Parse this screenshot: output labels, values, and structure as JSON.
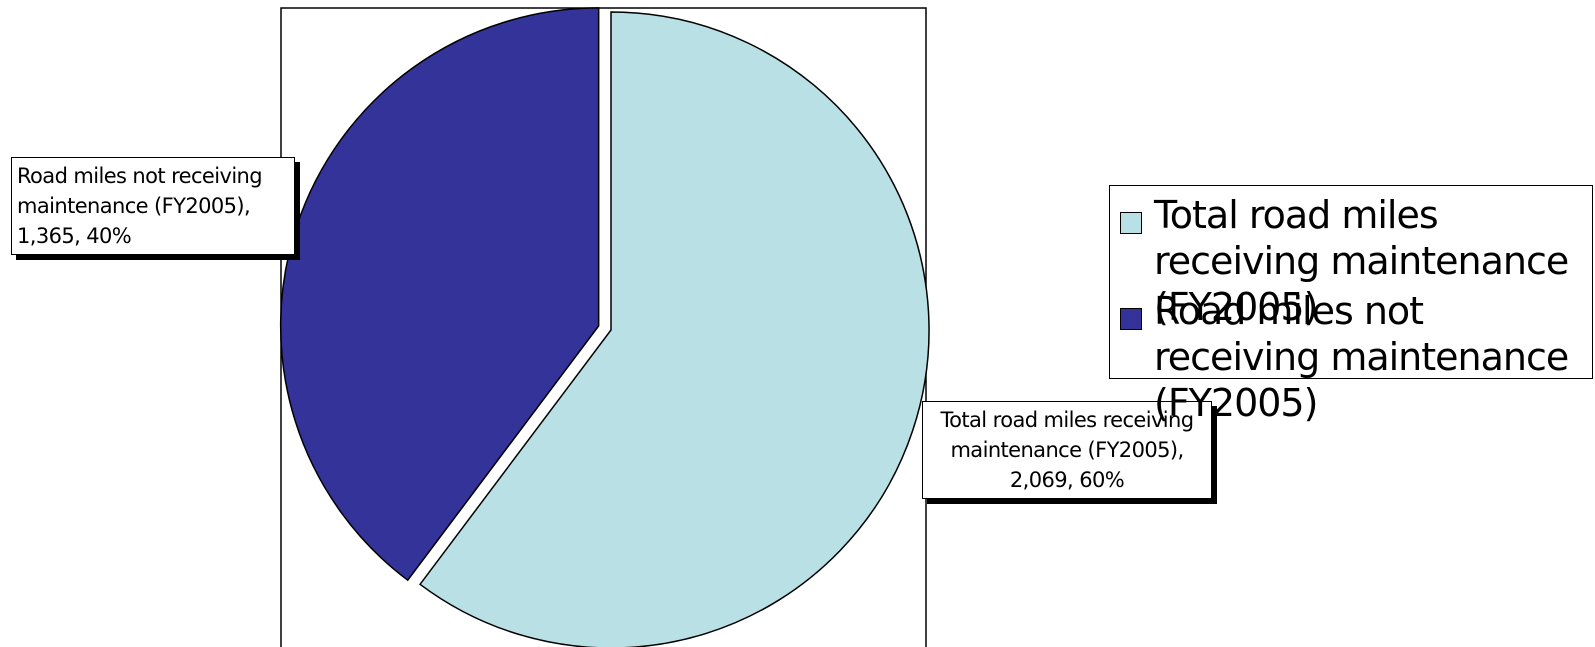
{
  "chart_data": {
    "type": "pie",
    "slices": [
      {
        "label": "Total road miles receiving maintenance (FY2005)",
        "value": 2069,
        "value_label": "2,069",
        "percent": "60%",
        "color": "#b9e0e4",
        "exploded": false
      },
      {
        "label": "Road miles not receiving maintenance (FY2005)",
        "value": 1365,
        "value_label": "1,365",
        "percent": "40%",
        "color": "#333399",
        "exploded": true
      }
    ],
    "data_labels": [
      "Total road miles receiving maintenance (FY2005), 2,069, 60%",
      "Road miles not receiving maintenance (FY2005), 1,365, 40%"
    ],
    "legend": {
      "placement": "right",
      "entries": [
        "Total road miles receiving maintenance (FY2005)",
        "Road miles not receiving maintenance (FY2005)"
      ]
    }
  }
}
